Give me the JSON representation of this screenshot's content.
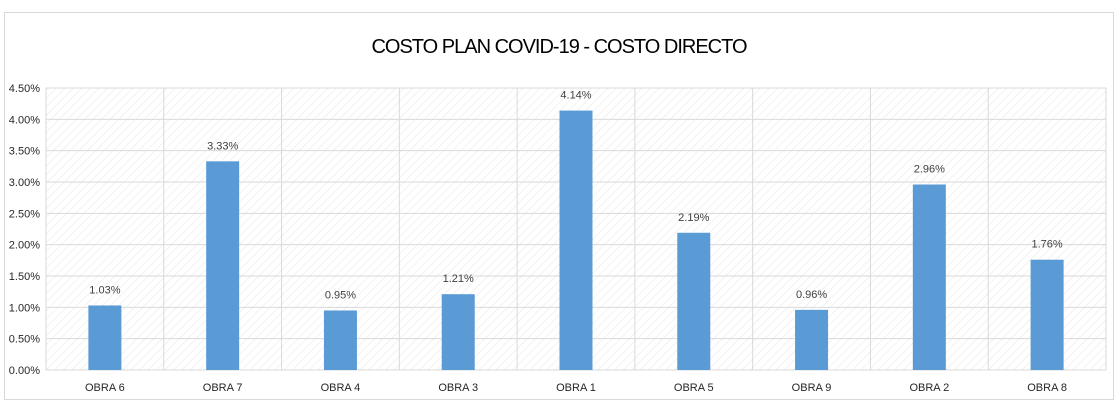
{
  "chart_data": {
    "type": "bar",
    "title": "COSTO PLAN COVID-19 - COSTO DIRECTO",
    "categories": [
      "OBRA 6",
      "OBRA 7",
      "OBRA 4",
      "OBRA 3",
      "OBRA 1",
      "OBRA 5",
      "OBRA 9",
      "OBRA 2",
      "OBRA 8"
    ],
    "values": [
      1.03,
      3.33,
      0.95,
      1.21,
      4.14,
      2.19,
      0.96,
      2.96,
      1.76
    ],
    "data_labels": [
      "1.03%",
      "3.33%",
      "0.95%",
      "1.21%",
      "4.14%",
      "2.19%",
      "0.96%",
      "2.96%",
      "1.76%"
    ],
    "y_ticks": [
      0,
      0.5,
      1,
      1.5,
      2,
      2.5,
      3,
      3.5,
      4,
      4.5
    ],
    "y_tick_labels": [
      "0.00%",
      "0.50%",
      "1.00%",
      "1.50%",
      "2.00%",
      "2.50%",
      "3.00%",
      "3.50%",
      "4.00%",
      "4.50%"
    ],
    "ylim": [
      0,
      4.5
    ],
    "xlabel": "",
    "ylabel": "",
    "grid": true,
    "legend": "none",
    "bar_color": "#5b9bd5",
    "grid_color": "#d9d9d9"
  }
}
